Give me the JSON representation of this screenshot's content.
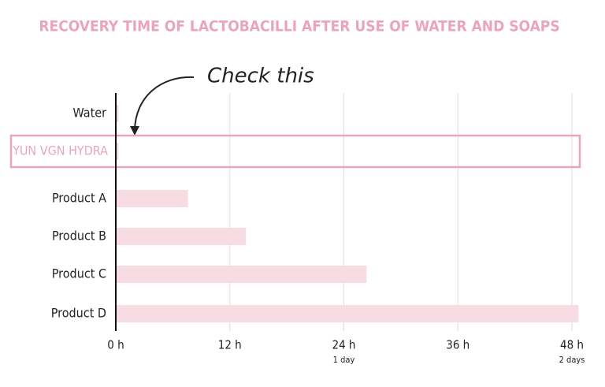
{
  "chart_data": {
    "type": "bar",
    "orientation": "horizontal",
    "title": "RECOVERY TIME OF LACTOBACILLI AFTER USE OF WATER AND SOAPS",
    "categories": [
      "Water",
      "YUN VGN HYDRA",
      "Product A",
      "Product B",
      "Product C",
      "Product D"
    ],
    "values": [
      0.3,
      0.3,
      7.6,
      13.7,
      26.4,
      48.7
    ],
    "color": "#f7dde3",
    "highlight_category": 1,
    "highlight_color": "#e9a6bb",
    "annotation": "Check this",
    "xlim": [
      0,
      48
    ],
    "xticks": [
      {
        "value": 0,
        "label": "0 h"
      },
      {
        "value": 12,
        "label": "12 h"
      },
      {
        "value": 24,
        "label": "24 h",
        "sublabel": "1 day"
      },
      {
        "value": 36,
        "label": "36 h"
      },
      {
        "value": 48,
        "label": "48 h",
        "sublabel": "2 days"
      }
    ],
    "grid": true
  }
}
